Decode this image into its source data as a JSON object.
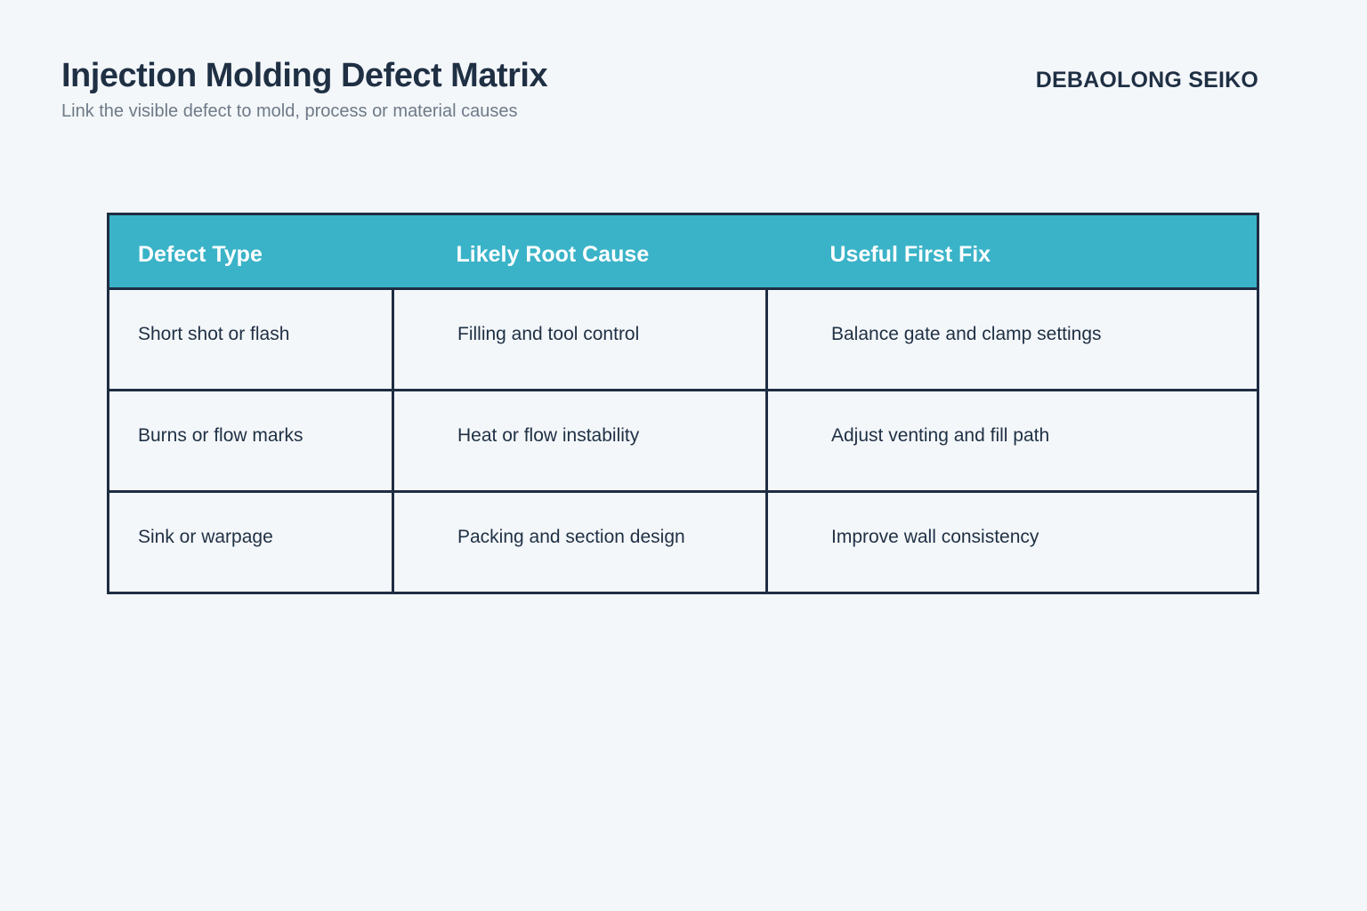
{
  "page": {
    "title": "Injection Molding Defect Matrix",
    "subtitle": "Link the visible defect to mold, process or material causes",
    "brand": "DEBAOLONG SEIKO"
  },
  "colors": {
    "background": "#f4f7fa",
    "accent_teal": "#3ab3c8",
    "border_navy": "#1e2d42",
    "text_dark": "#1f3044",
    "text_muted": "#6e7a87",
    "header_text": "#ffffff"
  },
  "chart_data": {
    "type": "table",
    "title": "Injection Molding Defect Matrix",
    "subtitle": "Link the visible defect to mold, process or material causes",
    "columns": [
      "Defect Type",
      "Likely Root Cause",
      "Useful First Fix"
    ],
    "rows": [
      [
        "Short shot or flash",
        "Filling and tool control",
        "Balance gate and clamp settings"
      ],
      [
        "Burns or flow marks",
        "Heat or flow instability",
        "Adjust venting and fill path"
      ],
      [
        "Sink or warpage",
        "Packing and section design",
        "Improve wall consistency"
      ]
    ],
    "layout_hints": {
      "header_background": "#3ab3c8",
      "header_text_color": "#ffffff",
      "border_color": "#1e2d42",
      "column_text_align": "left"
    }
  }
}
